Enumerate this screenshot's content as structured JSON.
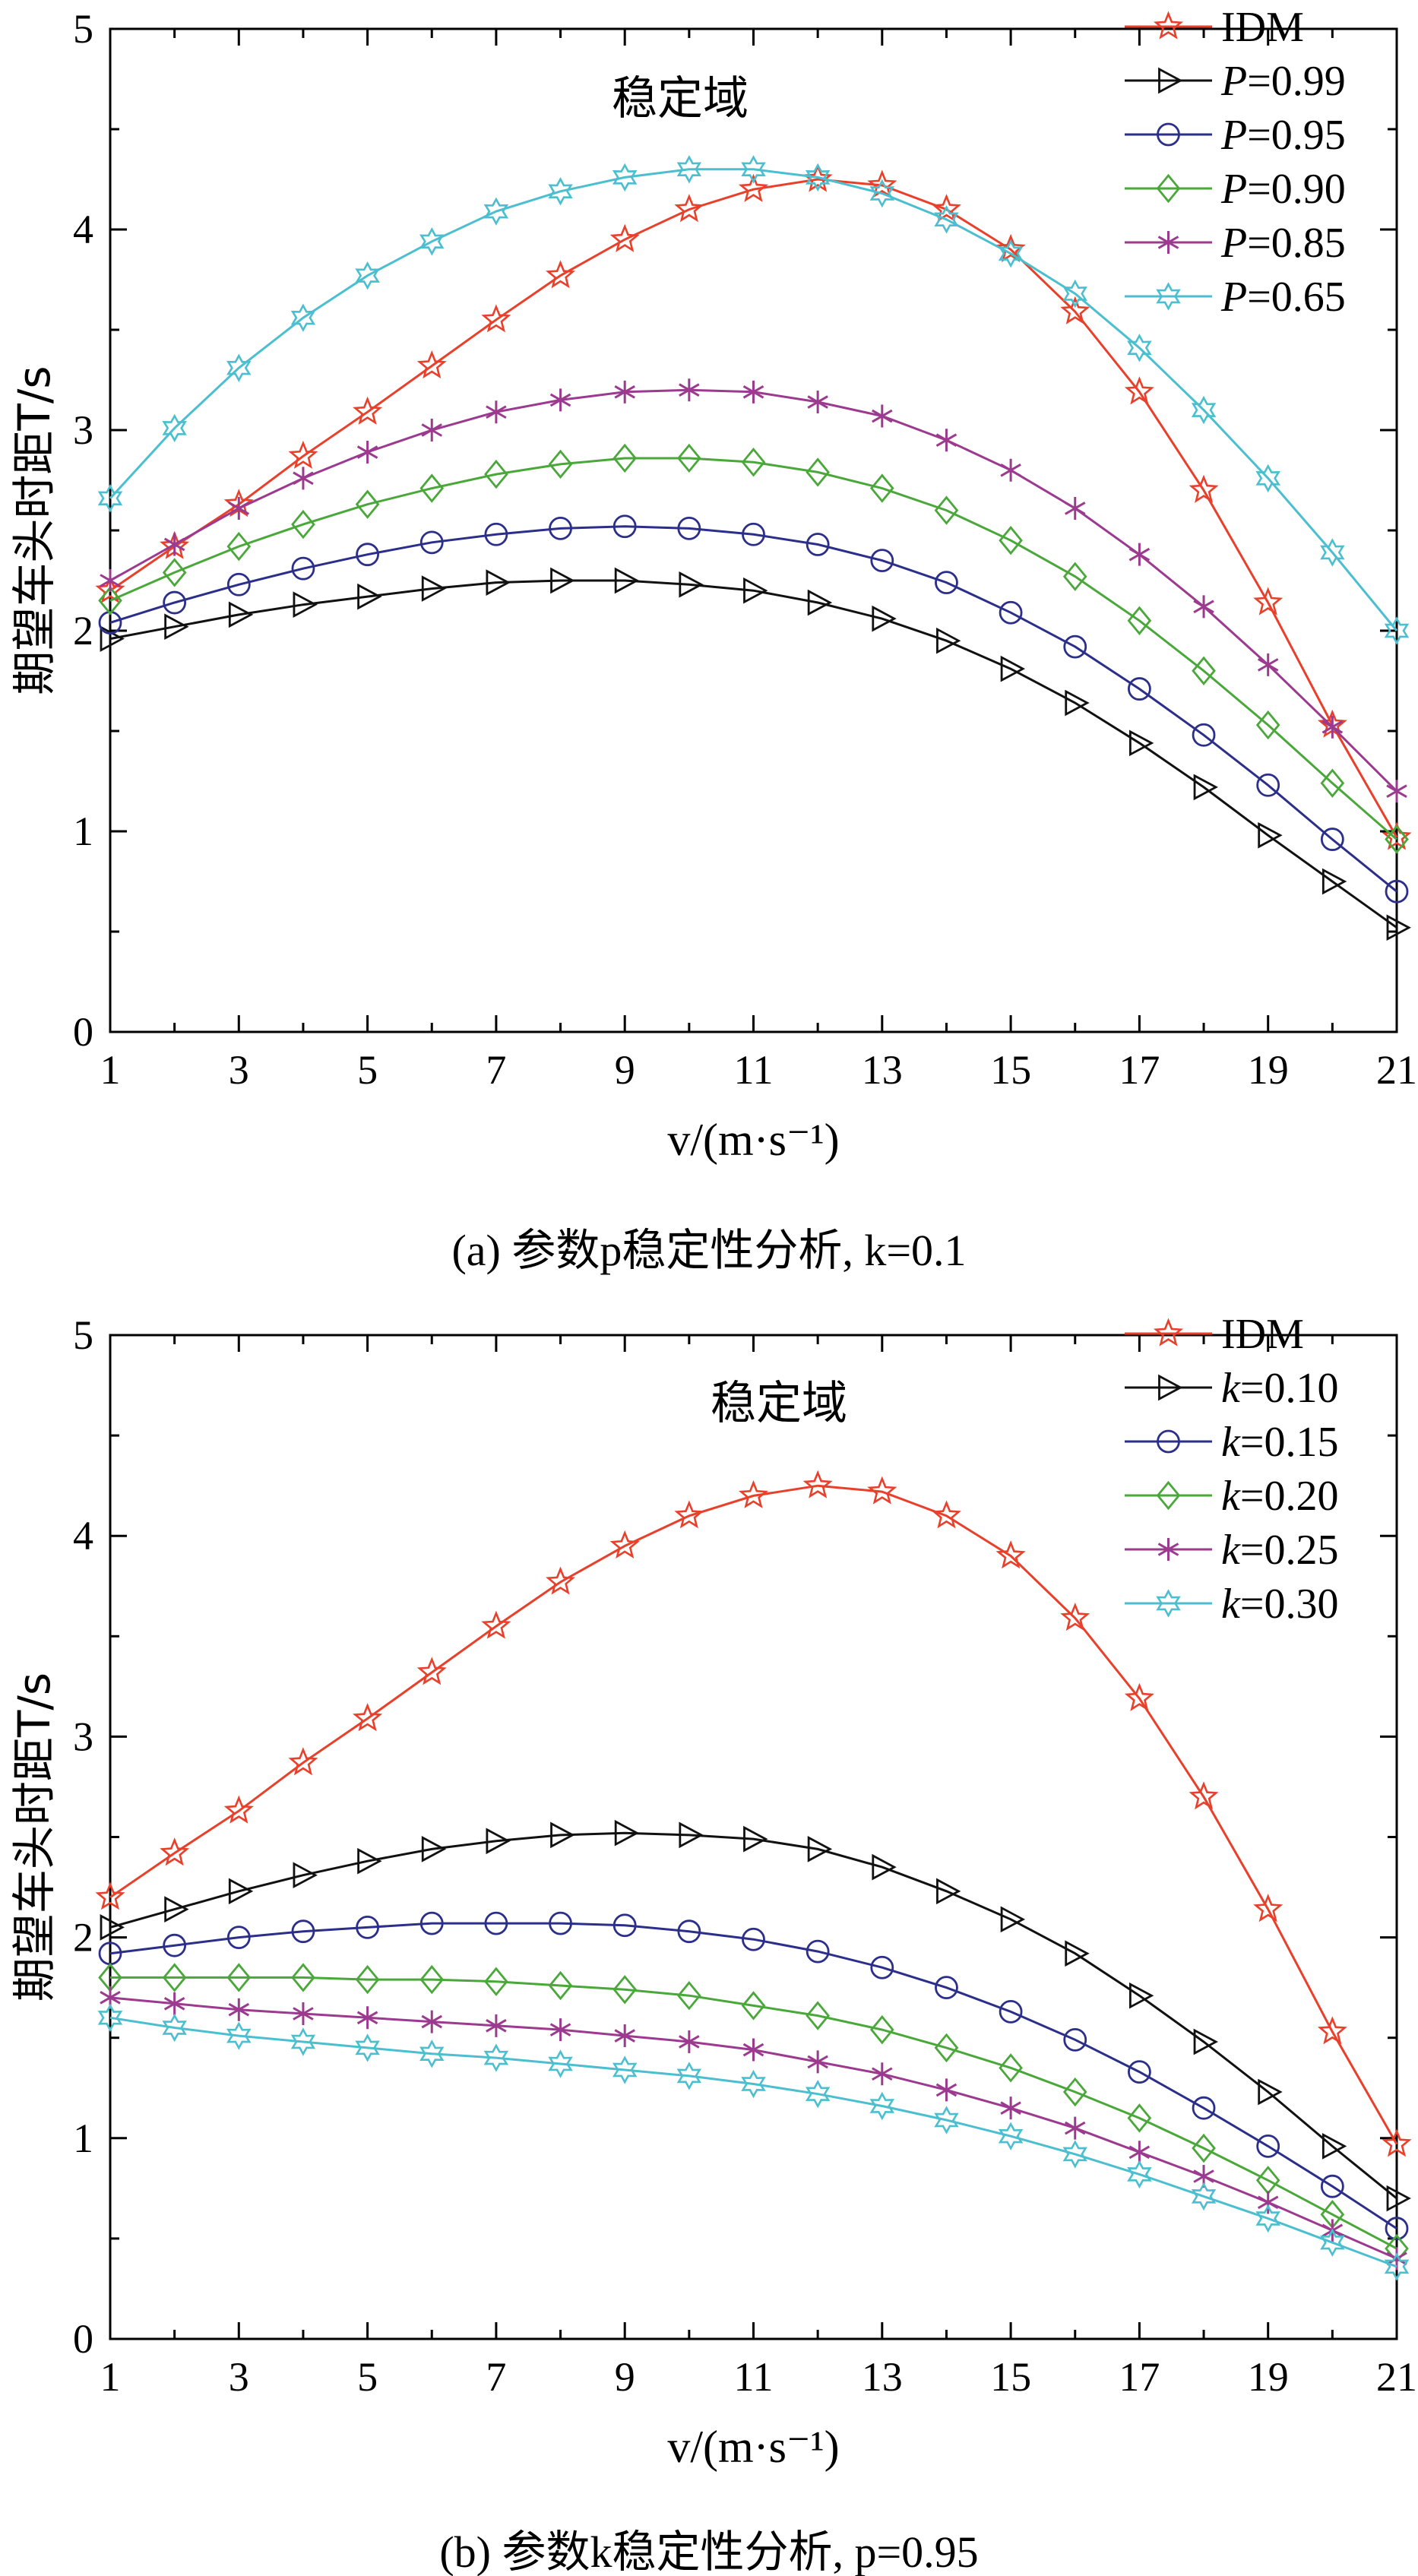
{
  "chart_data": [
    {
      "type": "line",
      "xlabel": "v/(m·s⁻¹)",
      "ylabel": "期望车头时距T/s",
      "annotation": "稳定域",
      "caption": "(a) 参数p稳定性分析, k=0.1",
      "xlim": [
        1,
        21
      ],
      "ylim": [
        0,
        5
      ],
      "xticks": [
        "1",
        "3",
        "5",
        "7",
        "9",
        "11",
        "13",
        "15",
        "17",
        "19",
        "21"
      ],
      "yticks": [
        "0",
        "1",
        "2",
        "3",
        "4",
        "5"
      ],
      "legend_position": "top-right",
      "x": [
        1,
        2,
        3,
        4,
        5,
        6,
        7,
        8,
        9,
        10,
        11,
        12,
        13,
        14,
        15,
        16,
        17,
        18,
        19,
        20,
        21
      ],
      "series": [
        {
          "name": "IDM",
          "label_var": "",
          "label_value": "IDM",
          "color": "#e8402a",
          "marker": "star",
          "values": [
            2.2,
            2.42,
            2.63,
            2.87,
            3.09,
            3.32,
            3.55,
            3.77,
            3.95,
            4.1,
            4.2,
            4.25,
            4.22,
            4.1,
            3.9,
            3.59,
            3.19,
            2.7,
            2.14,
            1.53,
            0.97
          ]
        },
        {
          "name": "P=0.99",
          "label_var": "P",
          "label_value": "=0.99",
          "color": "#111111",
          "marker": "triangle-right",
          "values": [
            1.96,
            2.02,
            2.08,
            2.13,
            2.17,
            2.21,
            2.24,
            2.25,
            2.25,
            2.23,
            2.2,
            2.14,
            2.06,
            1.95,
            1.81,
            1.64,
            1.44,
            1.22,
            0.98,
            0.75,
            0.52
          ]
        },
        {
          "name": "P=0.95",
          "label_var": "P",
          "label_value": "=0.95",
          "color": "#2b2f8a",
          "marker": "circle",
          "values": [
            2.04,
            2.14,
            2.23,
            2.31,
            2.38,
            2.44,
            2.48,
            2.51,
            2.52,
            2.51,
            2.48,
            2.43,
            2.35,
            2.24,
            2.09,
            1.92,
            1.71,
            1.48,
            1.23,
            0.96,
            0.7
          ]
        },
        {
          "name": "P=0.90",
          "label_var": "P",
          "label_value": "=0.90",
          "color": "#4aa83a",
          "marker": "diamond",
          "values": [
            2.15,
            2.29,
            2.42,
            2.53,
            2.63,
            2.71,
            2.78,
            2.83,
            2.86,
            2.86,
            2.84,
            2.79,
            2.71,
            2.6,
            2.45,
            2.27,
            2.05,
            1.8,
            1.53,
            1.24,
            0.96
          ]
        },
        {
          "name": "P=0.85",
          "label_var": "P",
          "label_value": "=0.85",
          "color": "#9b3a8f",
          "marker": "asterisk",
          "values": [
            2.25,
            2.43,
            2.61,
            2.76,
            2.89,
            3.0,
            3.09,
            3.15,
            3.19,
            3.2,
            3.19,
            3.14,
            3.07,
            2.95,
            2.8,
            2.61,
            2.38,
            2.12,
            1.83,
            1.52,
            1.2
          ]
        },
        {
          "name": "P=0.65",
          "label_var": "P",
          "label_value": "=0.65",
          "color": "#4bbfcf",
          "marker": "hexagram",
          "values": [
            2.66,
            3.01,
            3.31,
            3.56,
            3.77,
            3.94,
            4.09,
            4.19,
            4.26,
            4.3,
            4.3,
            4.26,
            4.18,
            4.05,
            3.88,
            3.68,
            3.41,
            3.1,
            2.76,
            2.39,
            2.0
          ]
        }
      ]
    },
    {
      "type": "line",
      "xlabel": "v/(m·s⁻¹)",
      "ylabel": "期望车头时距T/s",
      "annotation": "稳定域",
      "caption": "(b) 参数k稳定性分析, p=0.95",
      "xlim": [
        1,
        21
      ],
      "ylim": [
        0,
        5
      ],
      "xticks": [
        "1",
        "3",
        "5",
        "7",
        "9",
        "11",
        "13",
        "15",
        "17",
        "19",
        "21"
      ],
      "yticks": [
        "0",
        "1",
        "2",
        "3",
        "4",
        "5"
      ],
      "legend_position": "top-right",
      "x": [
        1,
        2,
        3,
        4,
        5,
        6,
        7,
        8,
        9,
        10,
        11,
        12,
        13,
        14,
        15,
        16,
        17,
        18,
        19,
        20,
        21
      ],
      "series": [
        {
          "name": "IDM",
          "label_var": "",
          "label_value": "IDM",
          "color": "#e8402a",
          "marker": "star",
          "values": [
            2.2,
            2.42,
            2.63,
            2.87,
            3.09,
            3.32,
            3.55,
            3.77,
            3.95,
            4.1,
            4.2,
            4.25,
            4.22,
            4.1,
            3.9,
            3.59,
            3.19,
            2.7,
            2.14,
            1.53,
            0.97
          ]
        },
        {
          "name": "k=0.10",
          "label_var": "k",
          "label_value": "=0.10",
          "color": "#111111",
          "marker": "triangle-right",
          "values": [
            2.05,
            2.14,
            2.23,
            2.31,
            2.38,
            2.44,
            2.48,
            2.51,
            2.52,
            2.51,
            2.49,
            2.44,
            2.35,
            2.23,
            2.09,
            1.92,
            1.71,
            1.48,
            1.23,
            0.96,
            0.7
          ]
        },
        {
          "name": "k=0.15",
          "label_var": "k",
          "label_value": "=0.15",
          "color": "#2b2f8a",
          "marker": "circle",
          "values": [
            1.92,
            1.96,
            2.0,
            2.03,
            2.05,
            2.07,
            2.07,
            2.07,
            2.06,
            2.03,
            1.99,
            1.93,
            1.85,
            1.75,
            1.63,
            1.49,
            1.33,
            1.15,
            0.96,
            0.76,
            0.55
          ]
        },
        {
          "name": "k=0.20",
          "label_var": "k",
          "label_value": "=0.20",
          "color": "#4aa83a",
          "marker": "diamond",
          "values": [
            1.8,
            1.8,
            1.8,
            1.8,
            1.79,
            1.79,
            1.78,
            1.76,
            1.74,
            1.71,
            1.66,
            1.61,
            1.54,
            1.45,
            1.35,
            1.23,
            1.1,
            0.95,
            0.79,
            0.62,
            0.45
          ]
        },
        {
          "name": "k=0.25",
          "label_var": "k",
          "label_value": "=0.25",
          "color": "#9b3a8f",
          "marker": "asterisk",
          "values": [
            1.7,
            1.67,
            1.64,
            1.62,
            1.6,
            1.58,
            1.56,
            1.54,
            1.51,
            1.48,
            1.44,
            1.38,
            1.32,
            1.24,
            1.15,
            1.05,
            0.93,
            0.81,
            0.68,
            0.54,
            0.4
          ]
        },
        {
          "name": "k=0.30",
          "label_var": "k",
          "label_value": "=0.30",
          "color": "#4bbfcf",
          "marker": "hexagram",
          "values": [
            1.6,
            1.55,
            1.51,
            1.48,
            1.45,
            1.42,
            1.4,
            1.37,
            1.34,
            1.31,
            1.27,
            1.22,
            1.16,
            1.09,
            1.01,
            0.92,
            0.82,
            0.71,
            0.6,
            0.48,
            0.36
          ]
        }
      ]
    }
  ]
}
